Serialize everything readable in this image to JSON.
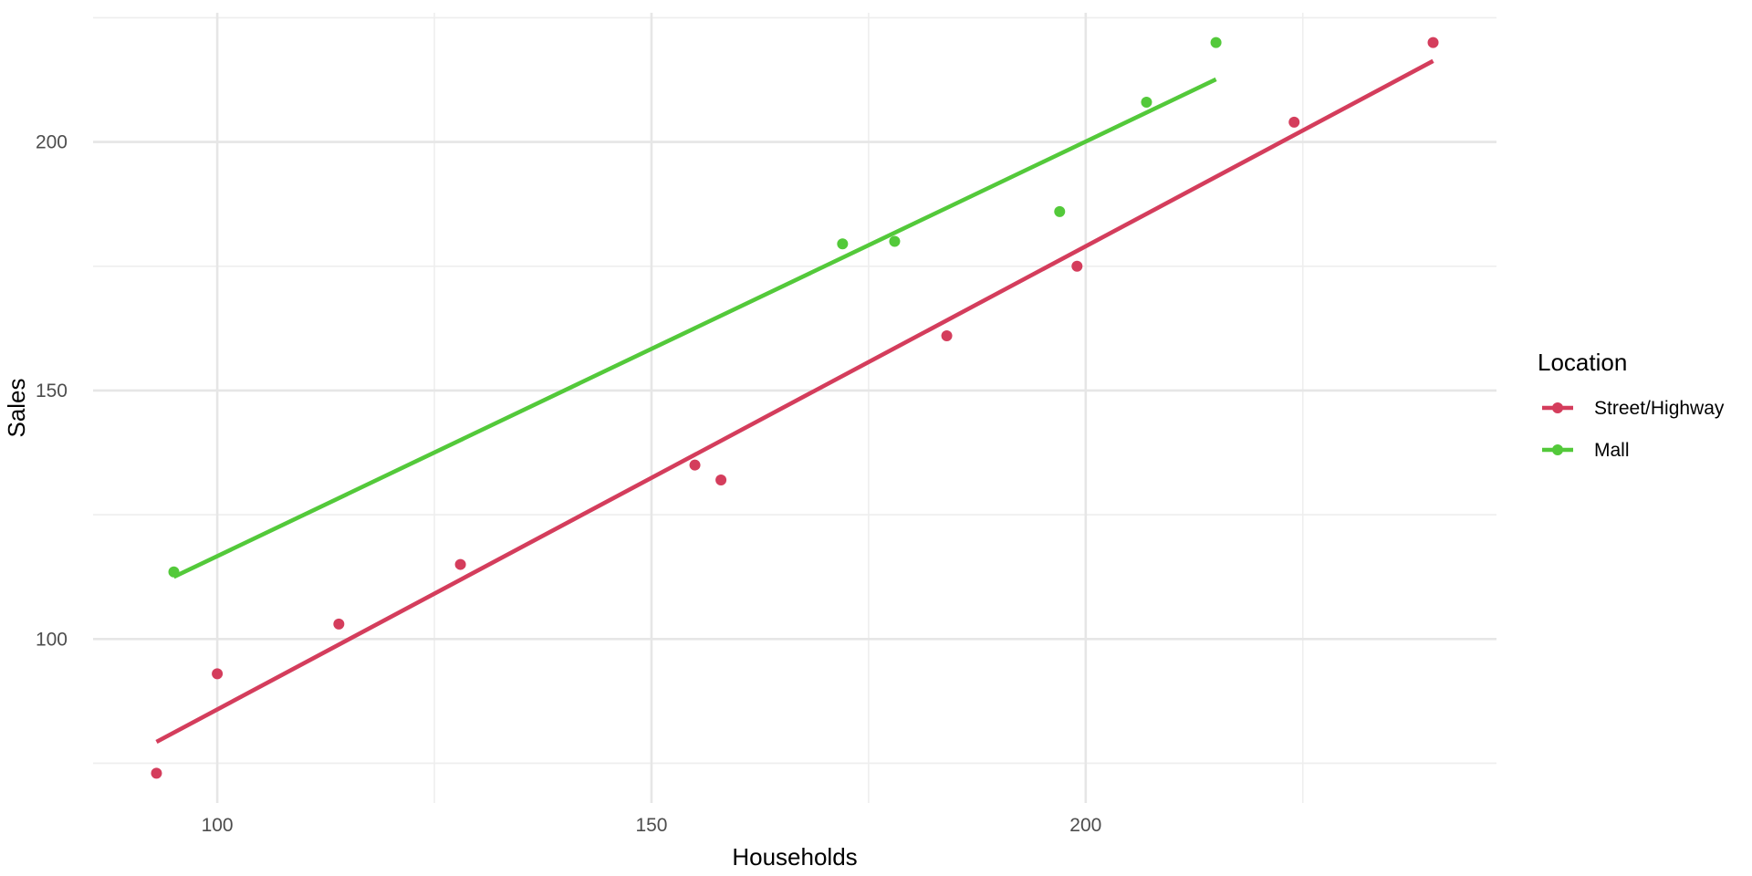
{
  "chart_data": {
    "type": "scatter",
    "title": "",
    "xlabel": "Households",
    "ylabel": "Sales",
    "xlim": [
      85.7,
      247.3
    ],
    "ylim": [
      67.0,
      226.0
    ],
    "x_ticks": [
      100,
      150,
      200
    ],
    "y_ticks": [
      100,
      150,
      200
    ],
    "x_minor_ticks": [
      125,
      175,
      225
    ],
    "y_minor_ticks": [
      75,
      125,
      175,
      225
    ],
    "grid": true,
    "legend": {
      "title": "Location",
      "position": "right"
    },
    "series": [
      {
        "name": "Street/Highway",
        "color": "#d43d5c",
        "points": [
          {
            "x": 93,
            "y": 73
          },
          {
            "x": 100,
            "y": 93
          },
          {
            "x": 114,
            "y": 103
          },
          {
            "x": 128,
            "y": 115
          },
          {
            "x": 155,
            "y": 135
          },
          {
            "x": 158,
            "y": 132
          },
          {
            "x": 184,
            "y": 161
          },
          {
            "x": 199,
            "y": 175
          },
          {
            "x": 224,
            "y": 204
          },
          {
            "x": 240,
            "y": 220
          }
        ],
        "fit_line": {
          "x": [
            93,
            240
          ],
          "y": [
            79.3,
            216.3
          ]
        }
      },
      {
        "name": "Mall",
        "color": "#53c93a",
        "points": [
          {
            "x": 95,
            "y": 113.5
          },
          {
            "x": 172,
            "y": 179.5
          },
          {
            "x": 178,
            "y": 180
          },
          {
            "x": 197,
            "y": 186
          },
          {
            "x": 207,
            "y": 208
          },
          {
            "x": 215,
            "y": 220
          }
        ],
        "fit_line": {
          "x": [
            95,
            215
          ],
          "y": [
            112.5,
            212.6
          ]
        }
      }
    ]
  }
}
